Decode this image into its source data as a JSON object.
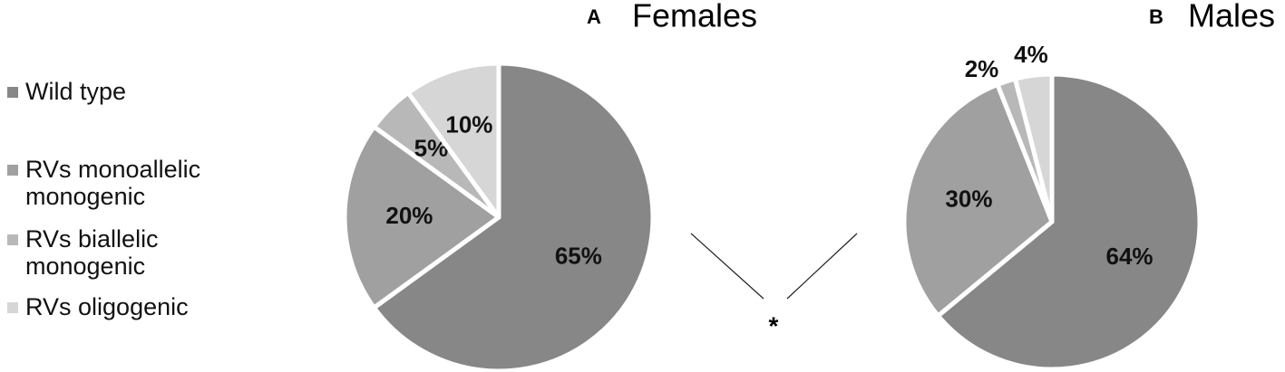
{
  "chart_data": [
    {
      "type": "pie",
      "panel": "A",
      "title": "Females",
      "categories": [
        "Wild type",
        "RVs monoallelic monogenic",
        "RVs biallelic monogenic",
        "RVs oligogenic"
      ],
      "values": [
        65,
        20,
        5,
        10
      ],
      "value_labels": [
        "65%",
        "20%",
        "5%",
        "10%"
      ],
      "colors": [
        "#878787",
        "#a0a0a0",
        "#b8b8b8",
        "#d6d6d6"
      ]
    },
    {
      "type": "pie",
      "panel": "B",
      "title": "Males",
      "categories": [
        "Wild type",
        "RVs monoallelic monogenic",
        "RVs biallelic monogenic",
        "RVs oligogenic"
      ],
      "values": [
        64,
        30,
        2,
        4
      ],
      "value_labels": [
        "64%",
        "30%",
        "2%",
        "4%"
      ],
      "colors": [
        "#878787",
        "#a0a0a0",
        "#b8b8b8",
        "#d6d6d6"
      ]
    }
  ],
  "comparison_annotation": "*"
}
